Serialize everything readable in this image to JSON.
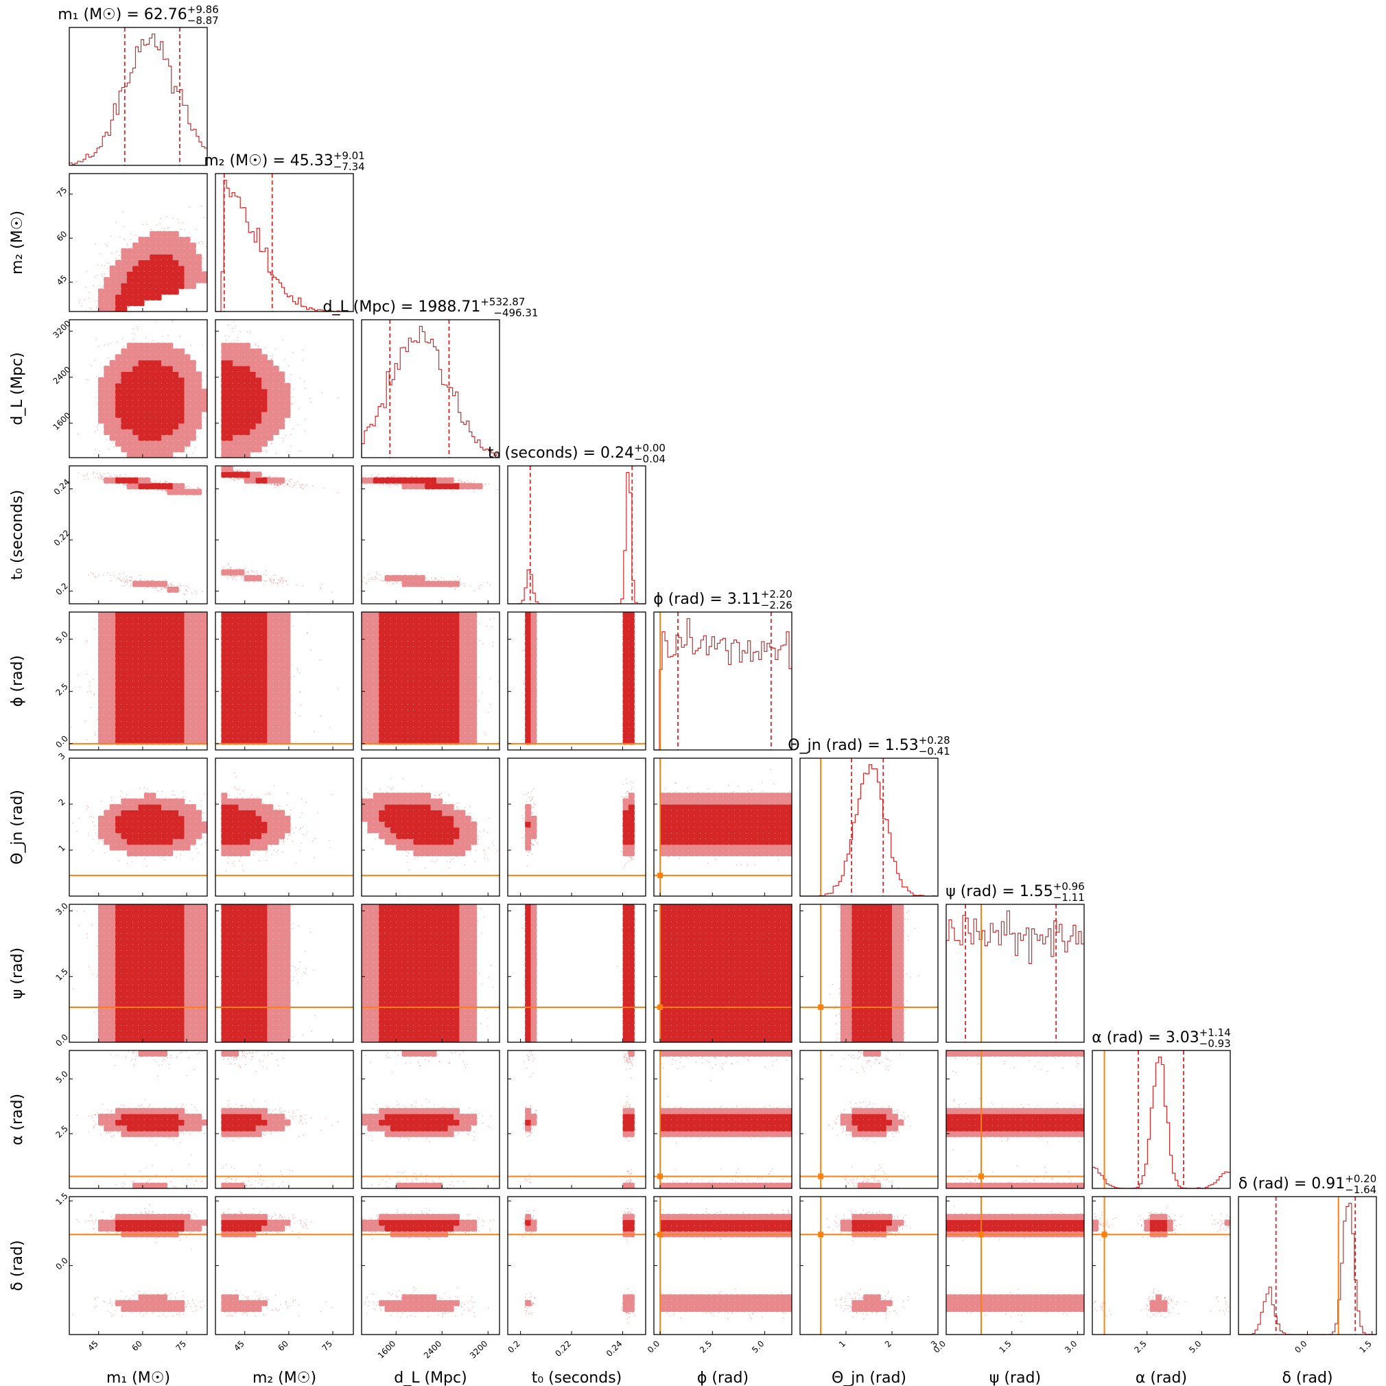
{
  "chart_data": {
    "type": "corner",
    "figure_note": "",
    "colors": {
      "posterior": "#d62728",
      "posterior_light": "#e88a8d",
      "truth": "#ff7f0e"
    },
    "parameters": [
      {
        "key": "m1",
        "label": "m₁ (M☉)",
        "range": [
          35,
          82
        ],
        "ticks": [
          45,
          60,
          75
        ],
        "show_tick_labels": true,
        "title": {
          "prefix": "m₁ (M☉) = ",
          "median": "62.76",
          "plus": "+9.86",
          "minus": "−8.87"
        },
        "median": 62.76,
        "q_low": 53.89,
        "q_high": 72.62,
        "truth": null
      },
      {
        "key": "m2",
        "label": "m₂ (M☉)",
        "range": [
          35,
          82
        ],
        "ticks": [
          45,
          60,
          75
        ],
        "show_tick_labels": true,
        "title": {
          "prefix": "m₂ (M☉) = ",
          "median": "45.33",
          "plus": "+9.01",
          "minus": "−7.34"
        },
        "median": 45.33,
        "q_low": 37.99,
        "q_high": 54.34,
        "truth": null
      },
      {
        "key": "dL",
        "label": "d_L (Mpc)",
        "range": [
          1000,
          3400
        ],
        "ticks": [
          1600,
          2400,
          3200
        ],
        "show_tick_labels": true,
        "title": {
          "prefix": "d_L (Mpc) = ",
          "median": "1988.71",
          "plus": "+532.87",
          "minus": "−496.31"
        },
        "median": 1988.71,
        "q_low": 1492.4,
        "q_high": 2521.58,
        "truth": null
      },
      {
        "key": "t0",
        "label": "t₀ (seconds)",
        "range": [
          0.195,
          0.249
        ],
        "ticks": [
          0.2,
          0.22,
          0.24
        ],
        "show_tick_labels": true,
        "title": {
          "prefix": "t₀ (seconds) = ",
          "median": "0.24",
          "plus": "+0.00",
          "minus": "−0.04"
        },
        "median": 0.2422,
        "q_low": 0.2038,
        "q_high": 0.2437,
        "truth": null
      },
      {
        "key": "phi",
        "label": "ϕ (rad)",
        "range": [
          -0.3,
          6.3
        ],
        "ticks": [
          0.0,
          2.5,
          5.0
        ],
        "tick_labels": [
          "0.0",
          "2.5",
          "5.0"
        ],
        "show_tick_labels": true,
        "title": {
          "prefix": "ϕ (rad) = ",
          "median": "3.11",
          "plus": "+2.20",
          "minus": "−2.26"
        },
        "median": 3.11,
        "q_low": 0.85,
        "q_high": 5.31,
        "truth": 0.0
      },
      {
        "key": "theta_jn",
        "label": "Θ_jn (rad)",
        "range": [
          0.0,
          3.0
        ],
        "ticks": [
          1,
          2,
          3
        ],
        "show_tick_labels": true,
        "title": {
          "prefix": "Θ_jn (rad) = ",
          "median": "1.53",
          "plus": "+0.28",
          "minus": "−0.41"
        },
        "median": 1.53,
        "q_low": 1.12,
        "q_high": 1.81,
        "truth": 0.45
      },
      {
        "key": "psi",
        "label": "ψ (rad)",
        "range": [
          0.0,
          3.15
        ],
        "ticks": [
          0.0,
          1.5,
          3.0
        ],
        "tick_labels": [
          "0.0",
          "1.5",
          "3.0"
        ],
        "show_tick_labels": true,
        "title": {
          "prefix": "ψ (rad) = ",
          "median": "1.55",
          "plus": "+0.96",
          "minus": "−1.11"
        },
        "median": 1.55,
        "q_low": 0.44,
        "q_high": 2.51,
        "truth": 0.8
      },
      {
        "key": "alpha",
        "label": "α (rad)",
        "range": [
          0.0,
          6.3
        ],
        "ticks": [
          2.5,
          5.0
        ],
        "tick_labels": [
          "2.5",
          "5.0"
        ],
        "show_tick_labels": true,
        "title": {
          "prefix": "α (rad) = ",
          "median": "3.03",
          "plus": "+1.14",
          "minus": "−0.93"
        },
        "median": 3.03,
        "q_low": 2.1,
        "q_high": 4.17,
        "truth": 0.55
      },
      {
        "key": "delta",
        "label": "δ (rad)",
        "range": [
          -1.6,
          1.6
        ],
        "ticks": [
          0.0,
          1.5
        ],
        "tick_labels": [
          "0.0",
          "1.5"
        ],
        "show_tick_labels": true,
        "title": {
          "prefix": "δ (rad) = ",
          "median": "0.91",
          "plus": "+0.20",
          "minus": "−1.64"
        },
        "median": 0.91,
        "q_low": -0.73,
        "q_high": 1.11,
        "truth": 0.72
      }
    ],
    "marginals": {
      "m1": {
        "type": "normal",
        "mu": 62.76,
        "sigma": 9.0
      },
      "m2": {
        "type": "halfnormal",
        "peak": 37.5,
        "sigma": 11.0
      },
      "dL": {
        "type": "normal",
        "mu": 2000,
        "sigma": 500
      },
      "t0": {
        "type": "mixture",
        "components": [
          {
            "w": 0.22,
            "mu": 0.2035,
            "sigma": 0.0011
          },
          {
            "w": 0.78,
            "mu": 0.2423,
            "sigma": 0.0009
          }
        ]
      },
      "phi": {
        "type": "uniform",
        "low": 0.0,
        "high": 6.28
      },
      "theta_jn": {
        "type": "normal",
        "mu": 1.53,
        "sigma": 0.32
      },
      "psi": {
        "type": "uniform",
        "low": 0.0,
        "high": 3.14
      },
      "alpha": {
        "type": "mixture",
        "components": [
          {
            "w": 0.72,
            "mu": 3.05,
            "sigma": 0.32
          },
          {
            "w": 0.14,
            "mu": 6.25,
            "sigma": 0.45
          },
          {
            "w": 0.14,
            "mu": 0.05,
            "sigma": 0.4
          }
        ]
      },
      "delta": {
        "type": "mixture",
        "components": [
          {
            "w": 0.24,
            "mu": -0.9,
            "sigma": 0.13
          },
          {
            "w": 0.76,
            "mu": 0.95,
            "sigma": 0.12
          }
        ]
      }
    }
  }
}
